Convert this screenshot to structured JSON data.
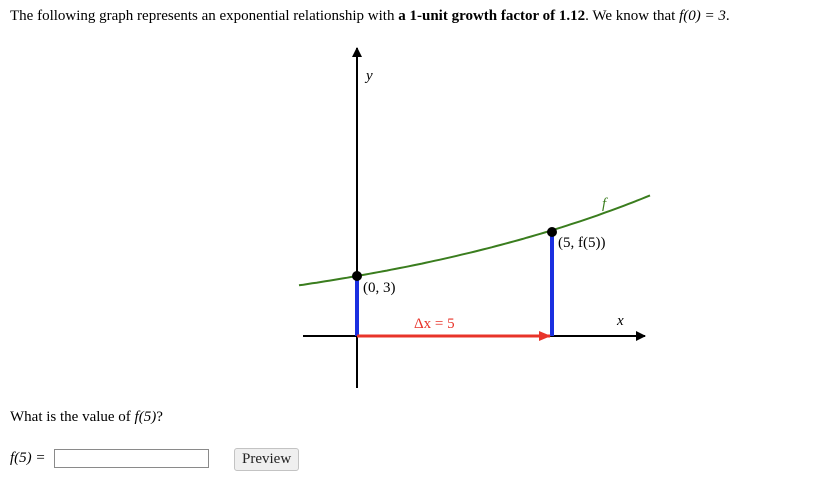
{
  "problem": {
    "text_before": "The following graph represents an exponential relationship with ",
    "text_bold": "a 1-unit growth factor of 1.12",
    "text_after": ". We know that ",
    "condition_math": "f(0) = 3",
    "text_end": "."
  },
  "graph": {
    "y_axis_label": "y",
    "x_axis_label": "x",
    "curve_label": "f",
    "point_a_label": "(0, 3)",
    "point_b_label": "(5, f(5))",
    "delta_label": "Δx = 5",
    "colors": {
      "curve": "#3a7d1e",
      "vertical": "#1a2fe0",
      "delta": "#e8342a",
      "axis": "#000000"
    }
  },
  "question": {
    "text": "What is the value of ",
    "math": "f(5)",
    "text_end": "?"
  },
  "answer": {
    "label_math": "f(5) =",
    "input_value": "",
    "preview_label": "Preview"
  }
}
